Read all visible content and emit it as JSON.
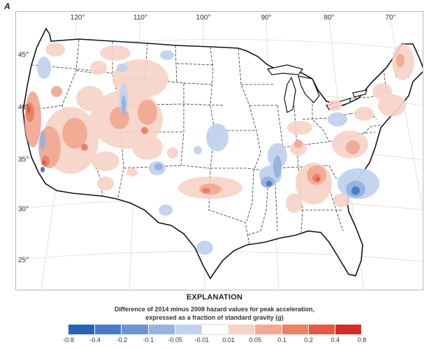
{
  "panel_letter": "A",
  "longitude_labels": [
    "120°",
    "110°",
    "100°",
    "90°",
    "80°",
    "70°"
  ],
  "latitude_labels": [
    "45°",
    "40°",
    "35°",
    "30°",
    "25°"
  ],
  "explanation": {
    "title": "EXPLANATION",
    "caption_line1": "Difference of 2014 minus 2008 hazard values for peak acceleration,",
    "caption_line2": "expressed as a fraction of standard gravity (g)"
  },
  "legend": {
    "ticks": [
      "-0.8",
      "-0.4",
      "-0.2",
      "-0.1",
      "-0.05",
      "-0.01",
      "0.01",
      "0.05",
      "0.1",
      "0.2",
      "0.4",
      "0.8"
    ],
    "colors": [
      "#2b63b4",
      "#4a7cc6",
      "#6d94d2",
      "#97b3e0",
      "#c2d2ee",
      "#ffffff",
      "#f7d3c6",
      "#f1aa94",
      "#e98366",
      "#e15a45",
      "#d92a2a"
    ]
  }
}
